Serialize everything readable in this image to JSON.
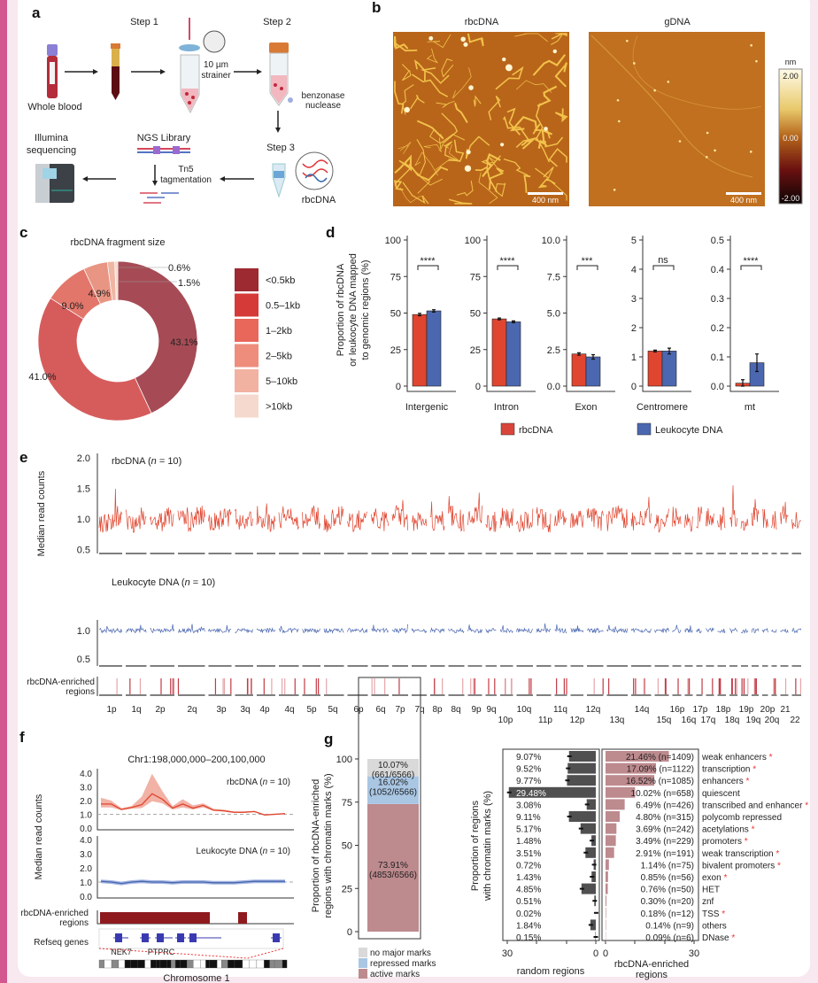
{
  "panel_labels": {
    "a": "a",
    "b": "b",
    "c": "c",
    "d": "d",
    "e": "e",
    "f": "f",
    "g": "g"
  },
  "panel_a": {
    "step1": "Step 1",
    "step2": "Step 2",
    "step3": "Step 3",
    "whole_blood": "Whole blood",
    "strainer_1": "10 µm",
    "strainer_2": "strainer",
    "benzonase_1": "benzonase",
    "benzonase_2": "nuclease",
    "rbcdna": "rbcDNA",
    "ngs_library": "NGS Library",
    "tn5_1": "Tn5",
    "tn5_2": "tagmentation",
    "illumina_1": "Illumina",
    "illumina_2": "sequencing"
  },
  "panel_b": {
    "left_title": "rbcDNA",
    "right_title": "gDNA",
    "scale_bar": "400 nm",
    "colorbar_unit": "nm",
    "colorbar_ticks": [
      "2.00",
      "0.00",
      "-2.00"
    ]
  },
  "colors": {
    "rbcDNA": "#e0452f",
    "leukocyte": "#4a67b0",
    "enriched": "#8e1a1e",
    "active": "#bd8a8e",
    "repressed": "#a9c6e3",
    "none": "#d9d9d9",
    "random": "#505050"
  },
  "chart_data": [
    {
      "id": "c",
      "type": "pie",
      "title": "rbcDNA fragment size",
      "categories": [
        "<0.5kb",
        "0.5–1kb",
        "1–2kb",
        "2–5kb",
        "5–10kb",
        ">10kb"
      ],
      "values": [
        43.1,
        41.0,
        9.0,
        4.9,
        1.5,
        0.6
      ],
      "labels": [
        "43.1%",
        "41.0%",
        "9.0%",
        "4.9%",
        "1.5%",
        "0.6%"
      ],
      "colors": [
        "#a64b55",
        "#d65c5c",
        "#e2766a",
        "#e99583",
        "#efb6a4",
        "#f4d9ce"
      ],
      "legend_colors": [
        "#9c2a30",
        "#d53a38",
        "#e9675a",
        "#ee8d7c",
        "#f1b2a1",
        "#f5d9ce"
      ],
      "legend": "right",
      "donut": true
    },
    {
      "id": "d",
      "type": "bar",
      "ylabel": [
        "Proportion of rbcDNA",
        "or leukocyte DNA mapped",
        "to genomic regions (%)"
      ],
      "series": [
        {
          "name": "rbcDNA"
        },
        {
          "name": "Leukocyte DNA"
        }
      ],
      "panels": [
        {
          "category": "Intergenic",
          "ylim": [
            0,
            100
          ],
          "ticks": [
            "0",
            "25",
            "50",
            "75",
            "100"
          ],
          "values": [
            49,
            51.5
          ],
          "errors": [
            0.8,
            0.8
          ],
          "significance": "****"
        },
        {
          "category": "Intron",
          "ylim": [
            0,
            100
          ],
          "ticks": [
            "0",
            "25",
            "50",
            "75",
            "100"
          ],
          "values": [
            46,
            44
          ],
          "errors": [
            0.6,
            0.6
          ],
          "significance": "****"
        },
        {
          "category": "Exon",
          "ylim": [
            0,
            10
          ],
          "ticks": [
            "0.0",
            "2.5",
            "5.0",
            "7.5",
            "10.0"
          ],
          "values": [
            2.2,
            2.0
          ],
          "errors": [
            0.08,
            0.15
          ],
          "significance": "***"
        },
        {
          "category": "Centromere",
          "ylim": [
            0,
            5
          ],
          "ticks": [
            "0",
            "1",
            "2",
            "3",
            "4",
            "5"
          ],
          "values": [
            1.2,
            1.2
          ],
          "errors": [
            0.03,
            0.1
          ],
          "significance": "ns"
        },
        {
          "category": "mt",
          "ylim": [
            0,
            0.5
          ],
          "ticks": [
            "0.0",
            "0.1",
            "0.2",
            "0.3",
            "0.4",
            "0.5"
          ],
          "values": [
            0.01,
            0.08
          ],
          "errors": [
            0.012,
            0.03
          ],
          "significance": "****"
        }
      ],
      "legend": "bottom"
    },
    {
      "id": "e",
      "type": "line",
      "ylabel": "Median read counts",
      "tracks": [
        {
          "name": "rbcDNA",
          "n": "10",
          "ticks": [
            "2.0",
            "1.5",
            "1.0",
            "0.5"
          ]
        },
        {
          "name": "Leukocyte DNA",
          "n": "10",
          "ticks": [
            "1.0",
            "0.5"
          ]
        }
      ],
      "enriched_label_1": "rbcDNA-enriched",
      "enriched_label_2": "regions",
      "arms_top": [
        "1p",
        "1q",
        "2p",
        "2q",
        "3p",
        "3q",
        "4p",
        "4q",
        "5p",
        "5q",
        "6p",
        "6q",
        "7p",
        "7q",
        "8p",
        "8q",
        "9p",
        "9q",
        "10q",
        "11q",
        "12q",
        "14q",
        "16p",
        "17p",
        "18p",
        "19p",
        "20p",
        "21"
      ],
      "arms_bottom": [
        "10p",
        "11p",
        "12p",
        "13q",
        "15q",
        "16q",
        "17q",
        "18q",
        "19q",
        "20q",
        "22"
      ]
    },
    {
      "id": "f",
      "type": "line",
      "title": "Chr1:198,000,000–200,100,000",
      "ylabel": "Median read counts",
      "ticks": [
        "4.0",
        "3.0",
        "2.0",
        "1.0",
        "0.0"
      ],
      "series": [
        {
          "name": "rbcDNA",
          "n": "10",
          "values": [
            1.75,
            1.75,
            1.35,
            1.5,
            1.7,
            2.5,
            2.1,
            1.45,
            1.75,
            1.45,
            1.65,
            1.3,
            1.25,
            1.15,
            1.15,
            1.2,
            0.95,
            1.0,
            1.05
          ],
          "upper": [
            2.2,
            2.0,
            1.45,
            1.6,
            2.3,
            3.95,
            2.7,
            1.6,
            2.1,
            1.65,
            1.8,
            1.4,
            1.35,
            1.2,
            1.2,
            1.25,
            1.0,
            1.05,
            1.1
          ],
          "lower": [
            1.5,
            1.5,
            1.3,
            1.4,
            1.45,
            1.95,
            1.8,
            1.35,
            1.5,
            1.35,
            1.5,
            1.25,
            1.2,
            1.1,
            1.1,
            1.15,
            0.9,
            0.95,
            1.0
          ]
        },
        {
          "name": "Leukocyte DNA",
          "n": "10",
          "values": [
            1.05,
            1.0,
            0.9,
            1.0,
            1.05,
            1.0,
            1.0,
            0.95,
            1.0,
            1.0,
            1.0,
            0.95,
            0.95,
            0.95,
            1.0,
            1.05,
            1.05,
            1.05,
            1.05
          ]
        }
      ],
      "enriched_label_1": "rbcDNA-enriched",
      "enriched_label_2": "regions",
      "refseq_label": "Refseq genes",
      "genes": [
        "NEK7",
        "PTPRC"
      ],
      "xlabel": "Chromosome 1"
    },
    {
      "id": "g_left",
      "type": "bar",
      "stacked": true,
      "ylabel": [
        "Proportion of rbcDNA-enriched",
        "regions with chromatin marks (%)"
      ],
      "ylim": [
        0,
        100
      ],
      "ticks": [
        "0",
        "25",
        "50",
        "75",
        "100"
      ],
      "segments": [
        {
          "name": "active marks",
          "value": 73.91,
          "label": "73.91%",
          "count": "(4853/6566)"
        },
        {
          "name": "repressed marks",
          "value": 16.02,
          "label": "16.02%",
          "count": "(1052/6566)"
        },
        {
          "name": "no major marks",
          "value": 10.07,
          "label": "10.07%",
          "count": "(661/6566)"
        }
      ],
      "legend": "bottom"
    },
    {
      "id": "g_right",
      "type": "bar",
      "orientation": "horizontal",
      "ylabel": [
        "Proportion of regions",
        "with chromatin marks (%)"
      ],
      "xlim": [
        0,
        30
      ],
      "left_xlabel": "random regions",
      "right_xlabel_1": "rbcDNA-enriched",
      "right_xlabel_2": "regions",
      "axis_ticks": [
        "30",
        "0",
        "0",
        "30"
      ],
      "rows": [
        {
          "mark": "weak enhancers",
          "star": true,
          "random": 9.07,
          "random_label": "9.07%",
          "enriched": 21.46,
          "enriched_label": "21.46% (n=1409)"
        },
        {
          "mark": "transcription",
          "star": true,
          "random": 9.52,
          "random_label": "9.52%",
          "enriched": 17.09,
          "enriched_label": "17.09% (n=1122)"
        },
        {
          "mark": "enhancers",
          "star": true,
          "random": 9.77,
          "random_label": "9.77%",
          "enriched": 16.52,
          "enriched_label": "16.52% (n=1085)"
        },
        {
          "mark": "quiescent",
          "star": false,
          "random": 29.48,
          "random_label": "29.48%",
          "enriched": 10.02,
          "enriched_label": "10.02% (n=658)"
        },
        {
          "mark": "transcribed and enhancer",
          "star": true,
          "random": 3.08,
          "random_label": "3.08%",
          "enriched": 6.49,
          "enriched_label": "6.49% (n=426)"
        },
        {
          "mark": "polycomb repressed",
          "star": false,
          "random": 9.11,
          "random_label": "9.11%",
          "enriched": 4.8,
          "enriched_label": "4.80% (n=315)"
        },
        {
          "mark": "acetylations",
          "star": true,
          "random": 5.17,
          "random_label": "5.17%",
          "enriched": 3.69,
          "enriched_label": "3.69% (n=242)"
        },
        {
          "mark": "promoters",
          "star": true,
          "random": 1.48,
          "random_label": "1.48%",
          "enriched": 3.49,
          "enriched_label": "3.49% (n=229)"
        },
        {
          "mark": "weak transcription",
          "star": true,
          "random": 3.51,
          "random_label": "3.51%",
          "enriched": 2.91,
          "enriched_label": "2.91% (n=191)"
        },
        {
          "mark": "bivalent promoters",
          "star": true,
          "random": 0.72,
          "random_label": "0.72%",
          "enriched": 1.14,
          "enriched_label": "1.14% (n=75)"
        },
        {
          "mark": "exon",
          "star": true,
          "random": 1.43,
          "random_label": "1.43%",
          "enriched": 0.85,
          "enriched_label": "0.85% (n=56)"
        },
        {
          "mark": "HET",
          "star": false,
          "random": 4.85,
          "random_label": "4.85%",
          "enriched": 0.76,
          "enriched_label": "0.76% (n=50)"
        },
        {
          "mark": "znf",
          "star": false,
          "random": 0.51,
          "random_label": "0.51%",
          "enriched": 0.3,
          "enriched_label": "0.30% (n=20)"
        },
        {
          "mark": "TSS",
          "star": true,
          "random": 0.02,
          "random_label": "0.02%",
          "enriched": 0.18,
          "enriched_label": "0.18% (n=12)"
        },
        {
          "mark": "others",
          "star": false,
          "random": 1.84,
          "random_label": "1.84%",
          "enriched": 0.14,
          "enriched_label": "0.14% (n=9)"
        },
        {
          "mark": "DNase",
          "star": true,
          "random": 0.15,
          "random_label": "0.15%",
          "enriched": 0.09,
          "enriched_label": "0.09% (n=6)"
        }
      ],
      "star_symbol": "*"
    }
  ]
}
